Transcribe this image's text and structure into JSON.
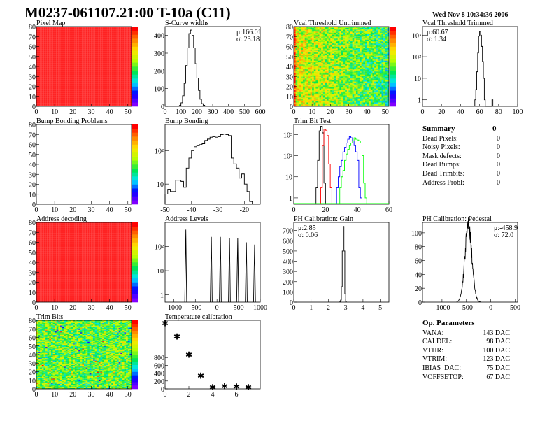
{
  "title": "M0237-061107.21:00 T-10a (C11)",
  "date": "Wed Nov  8 10:34:36 2006",
  "summary": {
    "heading": "Summary",
    "total": "0",
    "rows": [
      {
        "label": "Dead Pixels:",
        "value": "0"
      },
      {
        "label": "Noisy Pixels:",
        "value": "0"
      },
      {
        "label": "Mask defects:",
        "value": "0"
      },
      {
        "label": "Dead Bumps:",
        "value": "0"
      },
      {
        "label": "Dead Trimbits:",
        "value": "0"
      },
      {
        "label": "Address Probl:",
        "value": "0"
      }
    ]
  },
  "op_parameters": {
    "heading": "Op. Parameters",
    "rows": [
      {
        "label": "VANA:",
        "value": "143 DAC"
      },
      {
        "label": "CALDEL:",
        "value": "98 DAC"
      },
      {
        "label": "VTHR:",
        "value": "100 DAC"
      },
      {
        "label": "VTRIM:",
        "value": "123 DAC"
      },
      {
        "label": "IBIAS_DAC:",
        "value": "75 DAC"
      },
      {
        "label": "VOFFSETOP:",
        "value": "67 DAC"
      }
    ]
  },
  "colors": {
    "red": "#ff0000",
    "blue": "#0000ff",
    "green": "#00ff00",
    "black": "#000000"
  },
  "chart_data": [
    {
      "id": "pixel-map",
      "type": "heatmap",
      "title": "Pixel Map",
      "xlim": [
        0,
        52
      ],
      "ylim": [
        0,
        80
      ],
      "xticks": [
        0,
        10,
        20,
        30,
        40,
        50
      ],
      "yticks": [
        0,
        10,
        20,
        30,
        40,
        50,
        60,
        70,
        80
      ],
      "fill": "uniform-max",
      "palette": "rainbow"
    },
    {
      "id": "s-curve-widths",
      "type": "bar",
      "histogram": true,
      "title": "S-Curve widths",
      "xlim": [
        0,
        600
      ],
      "ylim": [
        0,
        450
      ],
      "xticks": [
        0,
        100,
        200,
        300,
        400,
        500,
        600
      ],
      "yticks": [
        0,
        100,
        200,
        300,
        400
      ],
      "bin_width": 10,
      "x": [
        80,
        90,
        100,
        110,
        120,
        130,
        140,
        150,
        160,
        170,
        180,
        190,
        200,
        210,
        220,
        230,
        240,
        250
      ],
      "values": [
        2,
        5,
        20,
        60,
        130,
        230,
        330,
        410,
        430,
        400,
        330,
        240,
        160,
        90,
        40,
        15,
        6,
        2
      ],
      "stats": {
        "mean": "μ:166.01",
        "sigma": "σ: 23.18"
      }
    },
    {
      "id": "vcal-untrimmed",
      "type": "heatmap",
      "title": "Vcal Threshold Untrimmed",
      "xlim": [
        0,
        52
      ],
      "ylim": [
        0,
        80
      ],
      "xticks": [
        0,
        10,
        20,
        30,
        40,
        50
      ],
      "yticks": [
        0,
        10,
        20,
        30,
        40,
        50,
        60,
        70,
        80
      ],
      "zrange": [
        85,
        120
      ],
      "palette": "rainbow"
    },
    {
      "id": "vcal-trimmed",
      "type": "bar",
      "histogram": true,
      "log": true,
      "title": "Vcal Threshold Trimmed",
      "xlim": [
        0,
        100
      ],
      "ylim": [
        0.5,
        2500
      ],
      "xticks": [
        0,
        20,
        40,
        60,
        80,
        100
      ],
      "ytick_labels": [
        "1",
        "10",
        "10²",
        "10³"
      ],
      "bin_width": 1,
      "x": [
        55,
        56,
        57,
        58,
        59,
        60,
        61,
        62,
        63,
        64,
        65,
        73
      ],
      "values": [
        1,
        3,
        20,
        150,
        900,
        1500,
        1000,
        300,
        60,
        10,
        1,
        1
      ],
      "stats": {
        "mean": "μ:60.67",
        "sigma": "σ: 1.34"
      }
    },
    {
      "id": "bump-bonding-problems",
      "type": "heatmap",
      "title": "Bump Bonding Problems",
      "xlim": [
        0,
        52
      ],
      "ylim": [
        0,
        80
      ],
      "xticks": [
        0,
        10,
        20,
        30,
        40,
        50
      ],
      "yticks": [
        0,
        10,
        20,
        30,
        40,
        50,
        60,
        70,
        80
      ],
      "fill": "empty",
      "palette": "rainbow"
    },
    {
      "id": "bump-bonding",
      "type": "bar",
      "histogram": true,
      "log": true,
      "title": "Bump Bonding",
      "xlim": [
        -50,
        -14
      ],
      "ylim": [
        2.5,
        600
      ],
      "xticks": [
        -50,
        -40,
        -30,
        -20
      ],
      "ytick_labels": [
        "10",
        "10²"
      ],
      "bin_width": 1,
      "x": [
        -50,
        -49,
        -48,
        -47,
        -46,
        -45,
        -44,
        -43,
        -42,
        -41,
        -40,
        -39,
        -38,
        -37,
        -36,
        -35,
        -34,
        -33,
        -32,
        -31,
        -30,
        -29,
        -28,
        -27,
        -26,
        -25,
        -24,
        -23,
        -22,
        -21,
        -20,
        -19,
        -18
      ],
      "values": [
        5,
        7,
        6,
        6,
        13,
        13,
        12,
        8,
        30,
        60,
        100,
        130,
        140,
        150,
        160,
        200,
        220,
        250,
        260,
        250,
        260,
        300,
        310,
        300,
        280,
        60,
        40,
        30,
        15,
        20,
        10,
        6,
        3
      ]
    },
    {
      "id": "trim-bit-test",
      "type": "bar",
      "histogram": true,
      "log": true,
      "title": "Trim Bit Test",
      "xlim": [
        0,
        60
      ],
      "ylim": [
        0.5,
        3000
      ],
      "xticks": [
        0,
        20,
        40,
        60
      ],
      "ytick_labels": [
        "1",
        "10",
        "10²",
        "10³"
      ],
      "bin_width": 1,
      "series": [
        {
          "color": "#000000",
          "x": [
            14,
            15,
            16,
            17,
            18,
            19
          ],
          "values": [
            3,
            60,
            1500,
            2500,
            1200,
            5
          ]
        },
        {
          "color": "#ff0000",
          "x": [
            17,
            18,
            19,
            20,
            21,
            22,
            23
          ],
          "values": [
            3,
            300,
            1800,
            1600,
            900,
            40,
            3
          ]
        },
        {
          "color": "#0000ff",
          "x": [
            27,
            28,
            29,
            30,
            31,
            32,
            33,
            34,
            35,
            36,
            37,
            38,
            39,
            40,
            41,
            42
          ],
          "values": [
            3,
            10,
            30,
            60,
            150,
            250,
            400,
            600,
            800,
            700,
            500,
            300,
            150,
            60,
            3,
            1
          ]
        },
        {
          "color": "#00ff00",
          "x": [
            29,
            30,
            31,
            32,
            33,
            34,
            35,
            36,
            37,
            38,
            39,
            40,
            41,
            42,
            43,
            44,
            45
          ],
          "values": [
            3,
            10,
            20,
            60,
            120,
            200,
            300,
            400,
            500,
            700,
            600,
            550,
            500,
            400,
            100,
            5,
            1
          ]
        }
      ]
    },
    {
      "id": "address-decoding",
      "type": "heatmap",
      "title": "Address decoding",
      "xlim": [
        0,
        52
      ],
      "ylim": [
        0,
        80
      ],
      "xticks": [
        0,
        10,
        20,
        30,
        40,
        50
      ],
      "yticks": [
        0,
        10,
        20,
        30,
        40,
        50,
        60,
        70,
        80
      ],
      "fill": "uniform-max",
      "palette": "rainbow"
    },
    {
      "id": "address-levels",
      "type": "line",
      "log": true,
      "title": "Address Levels",
      "xlim": [
        -1200,
        1000
      ],
      "ylim": [
        0.5,
        1000
      ],
      "xticks": [
        -1000,
        -500,
        0,
        500,
        1000
      ],
      "ytick_labels": [
        "1",
        "10",
        "10²"
      ],
      "peaks": [
        {
          "x": -720,
          "y": 500
        },
        {
          "x": -130,
          "y": 250
        },
        {
          "x": 80,
          "y": 250
        },
        {
          "x": 290,
          "y": 230
        },
        {
          "x": 480,
          "y": 230
        },
        {
          "x": 680,
          "y": 150
        },
        {
          "x": 870,
          "y": 120
        }
      ]
    },
    {
      "id": "ph-gain",
      "type": "bar",
      "histogram": true,
      "title": "PH Calibration: Gain",
      "xlim": [
        0,
        5.5
      ],
      "ylim": [
        0,
        780
      ],
      "xticks": [
        0,
        1,
        2,
        3,
        4,
        5
      ],
      "yticks": [
        0,
        100,
        200,
        300,
        400,
        500,
        600,
        700
      ],
      "bin_width": 0.05,
      "x": [
        2.65,
        2.7,
        2.75,
        2.8,
        2.85,
        2.9,
        2.95,
        3.0
      ],
      "values": [
        2,
        20,
        150,
        500,
        740,
        500,
        80,
        2
      ],
      "stats": {
        "mean": "μ:2.85",
        "sigma": "σ: 0.06"
      }
    },
    {
      "id": "ph-pedestal",
      "type": "line",
      "histogram": true,
      "title": "PH Calibration: Pedestal",
      "xlim": [
        -1400,
        550
      ],
      "ylim": [
        0,
        115
      ],
      "xticks": [
        -1000,
        -500,
        0,
        500
      ],
      "yticks": [
        0,
        20,
        40,
        60,
        80,
        100
      ],
      "mean": -458.9,
      "sigma": 72.0,
      "peak": 108,
      "stats": {
        "mean": "μ:-458.9",
        "sigma": "σ: 72.0"
      }
    },
    {
      "id": "trim-bits",
      "type": "heatmap",
      "title": "Trim Bits",
      "xlim": [
        0,
        52
      ],
      "ylim": [
        0,
        80
      ],
      "xticks": [
        0,
        10,
        20,
        30,
        40,
        50
      ],
      "yticks": [
        0,
        10,
        20,
        30,
        40,
        50,
        60,
        70,
        80
      ],
      "zrange": [
        0,
        16
      ],
      "palette": "rainbow"
    },
    {
      "id": "temperature-calibration",
      "type": "scatter",
      "marker": "star",
      "title": "Temperature calibration",
      "xlim": [
        0,
        8
      ],
      "ylim": [
        0,
        1750
      ],
      "xticks": [
        0,
        2,
        4,
        6
      ],
      "yticks": [
        0,
        200,
        400,
        600,
        800
      ],
      "x": [
        0,
        1,
        2,
        3,
        4,
        5,
        6,
        7
      ],
      "y": [
        1670,
        1330,
        870,
        330,
        40,
        60,
        50,
        40
      ]
    }
  ]
}
